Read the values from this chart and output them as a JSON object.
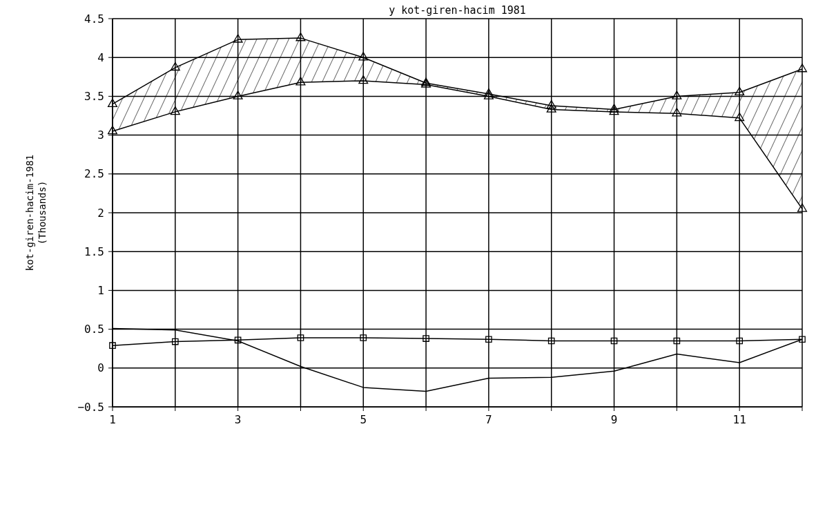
{
  "chart_data": {
    "type": "line",
    "title": "y kot-giren-hacim 1981",
    "ylabel": "kot-giren-hacim-1981\n(Thousands)",
    "x": [
      1,
      2,
      3,
      4,
      5,
      6,
      7,
      8,
      9,
      10,
      11,
      12
    ],
    "series": [
      {
        "color": "#000000",
        "marker": "triangle",
        "values": [
          3.4,
          3.87,
          4.23,
          4.25,
          4.0,
          3.67,
          3.53,
          3.38,
          3.33,
          3.5,
          3.55,
          3.85
        ],
        "lower": [
          3.05,
          3.3,
          3.5,
          3.68,
          3.7,
          3.65,
          3.5,
          3.33,
          3.3,
          3.28,
          3.22,
          2.05
        ],
        "upper": [
          3.4,
          3.87,
          4.23,
          4.25,
          4.0,
          3.67,
          3.53,
          3.38,
          3.33,
          3.5,
          3.55,
          3.85
        ]
      },
      {
        "color": "#000000",
        "marker": "triangle",
        "values": [
          3.05,
          3.3,
          3.5,
          3.68,
          3.7,
          3.65,
          3.5,
          3.33,
          3.3,
          3.28,
          3.22,
          2.05
        ]
      },
      {
        "color": "#000000",
        "marker": "square",
        "values": [
          0.29,
          0.34,
          0.36,
          0.39,
          0.39,
          0.38,
          0.37,
          0.35,
          0.35,
          0.35,
          0.35,
          0.37
        ]
      },
      {
        "color": "#000000",
        "marker": "none",
        "values": [
          0.51,
          0.49,
          0.35,
          0.02,
          -0.25,
          -0.3,
          -0.13,
          -0.12,
          -0.04,
          0.18,
          0.07,
          0.37
        ]
      }
    ],
    "xlim": [
      1,
      12
    ],
    "xticks": [
      1,
      {
        "value": 2,
        "label": null
      },
      3,
      {
        "value": 4,
        "label": null
      },
      5,
      {
        "value": 6,
        "label": null
      },
      7,
      {
        "value": 8,
        "label": null
      },
      9,
      {
        "value": 10,
        "label": null
      },
      11,
      {
        "value": 12,
        "label": null
      }
    ],
    "ylim": [
      -0.5,
      4.5
    ],
    "yticks": [
      -0.5,
      0,
      0.5,
      1,
      1.5,
      2,
      2.5,
      3,
      3.5,
      4,
      4.5
    ],
    "grid": true
  }
}
